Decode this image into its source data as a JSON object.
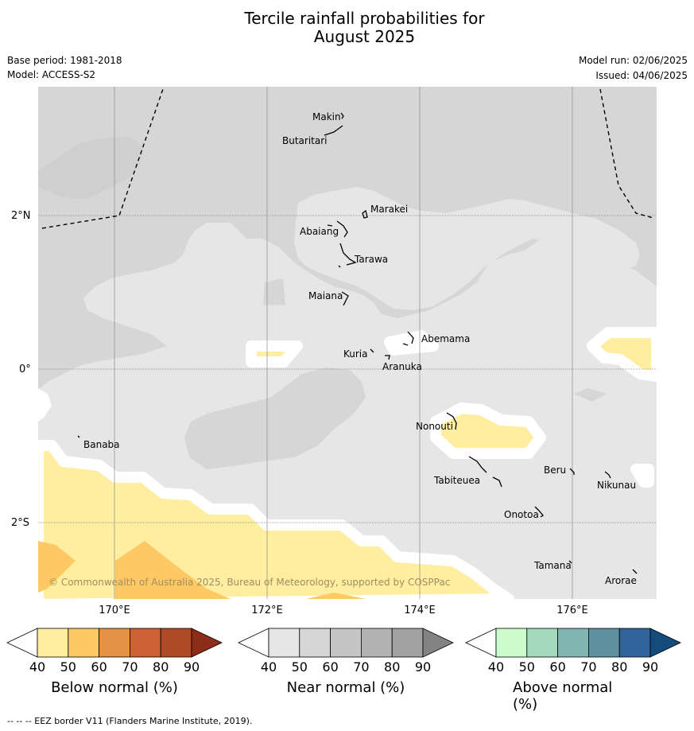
{
  "title_line1": "Tercile rainfall probabilities for",
  "title_line2": "August 2025",
  "base_period": "Base period: 1981-2018",
  "model": "Model: ACCESS-S2",
  "model_run": "Model run: 02/06/2025",
  "issued": "Issued: 04/06/2025",
  "copyright": "© Commonwealth of Australia 2025, Bureau of Meteorology, supported by COSPPac",
  "footnote": "--  --  -- EEZ border V11 (Flanders Marine Institute, 2019).",
  "lon_labels": [
    "170°E",
    "172°E",
    "174°E",
    "176°E"
  ],
  "lat_labels": [
    "2°N",
    "0°",
    "2°S"
  ],
  "places": [
    {
      "name": "Makin"
    },
    {
      "name": "Butaritari"
    },
    {
      "name": "Marakei"
    },
    {
      "name": "Abaiang"
    },
    {
      "name": "Tarawa"
    },
    {
      "name": "Maiana"
    },
    {
      "name": "Abemama"
    },
    {
      "name": "Kuria"
    },
    {
      "name": "Aranuka"
    },
    {
      "name": "Banaba"
    },
    {
      "name": "Nonouti"
    },
    {
      "name": "Tabiteuea"
    },
    {
      "name": "Beru"
    },
    {
      "name": "Nikunau"
    },
    {
      "name": "Onotoa"
    },
    {
      "name": "Tamana"
    },
    {
      "name": "Arorae"
    }
  ],
  "colorbars": [
    {
      "label": "Below normal (%)",
      "colors": [
        "#ffeda0",
        "#fec965",
        "#e49346",
        "#cc6233",
        "#b04b27",
        "#8c2d1a"
      ],
      "ticks": [
        "40",
        "50",
        "60",
        "70",
        "80",
        "90"
      ]
    },
    {
      "label": "Near normal (%)",
      "colors": [
        "#e6e6e6",
        "#d6d6d6",
        "#c5c5c5",
        "#b3b3b3",
        "#a2a2a2",
        "#838383"
      ],
      "ticks": [
        "40",
        "50",
        "60",
        "70",
        "80",
        "90"
      ]
    },
    {
      "label": "Above normal (%)",
      "colors": [
        "#ccfcce",
        "#a4d9bd",
        "#80b7b3",
        "#5e91a0",
        "#31649a",
        "#144b7d"
      ],
      "ticks": [
        "40",
        "50",
        "60",
        "70",
        "80",
        "90"
      ]
    }
  ],
  "colors": {
    "near_40": "#e6e6e6",
    "near_50": "#d6d6d6",
    "below_40": "#ffeda0",
    "below_50": "#fec965"
  }
}
